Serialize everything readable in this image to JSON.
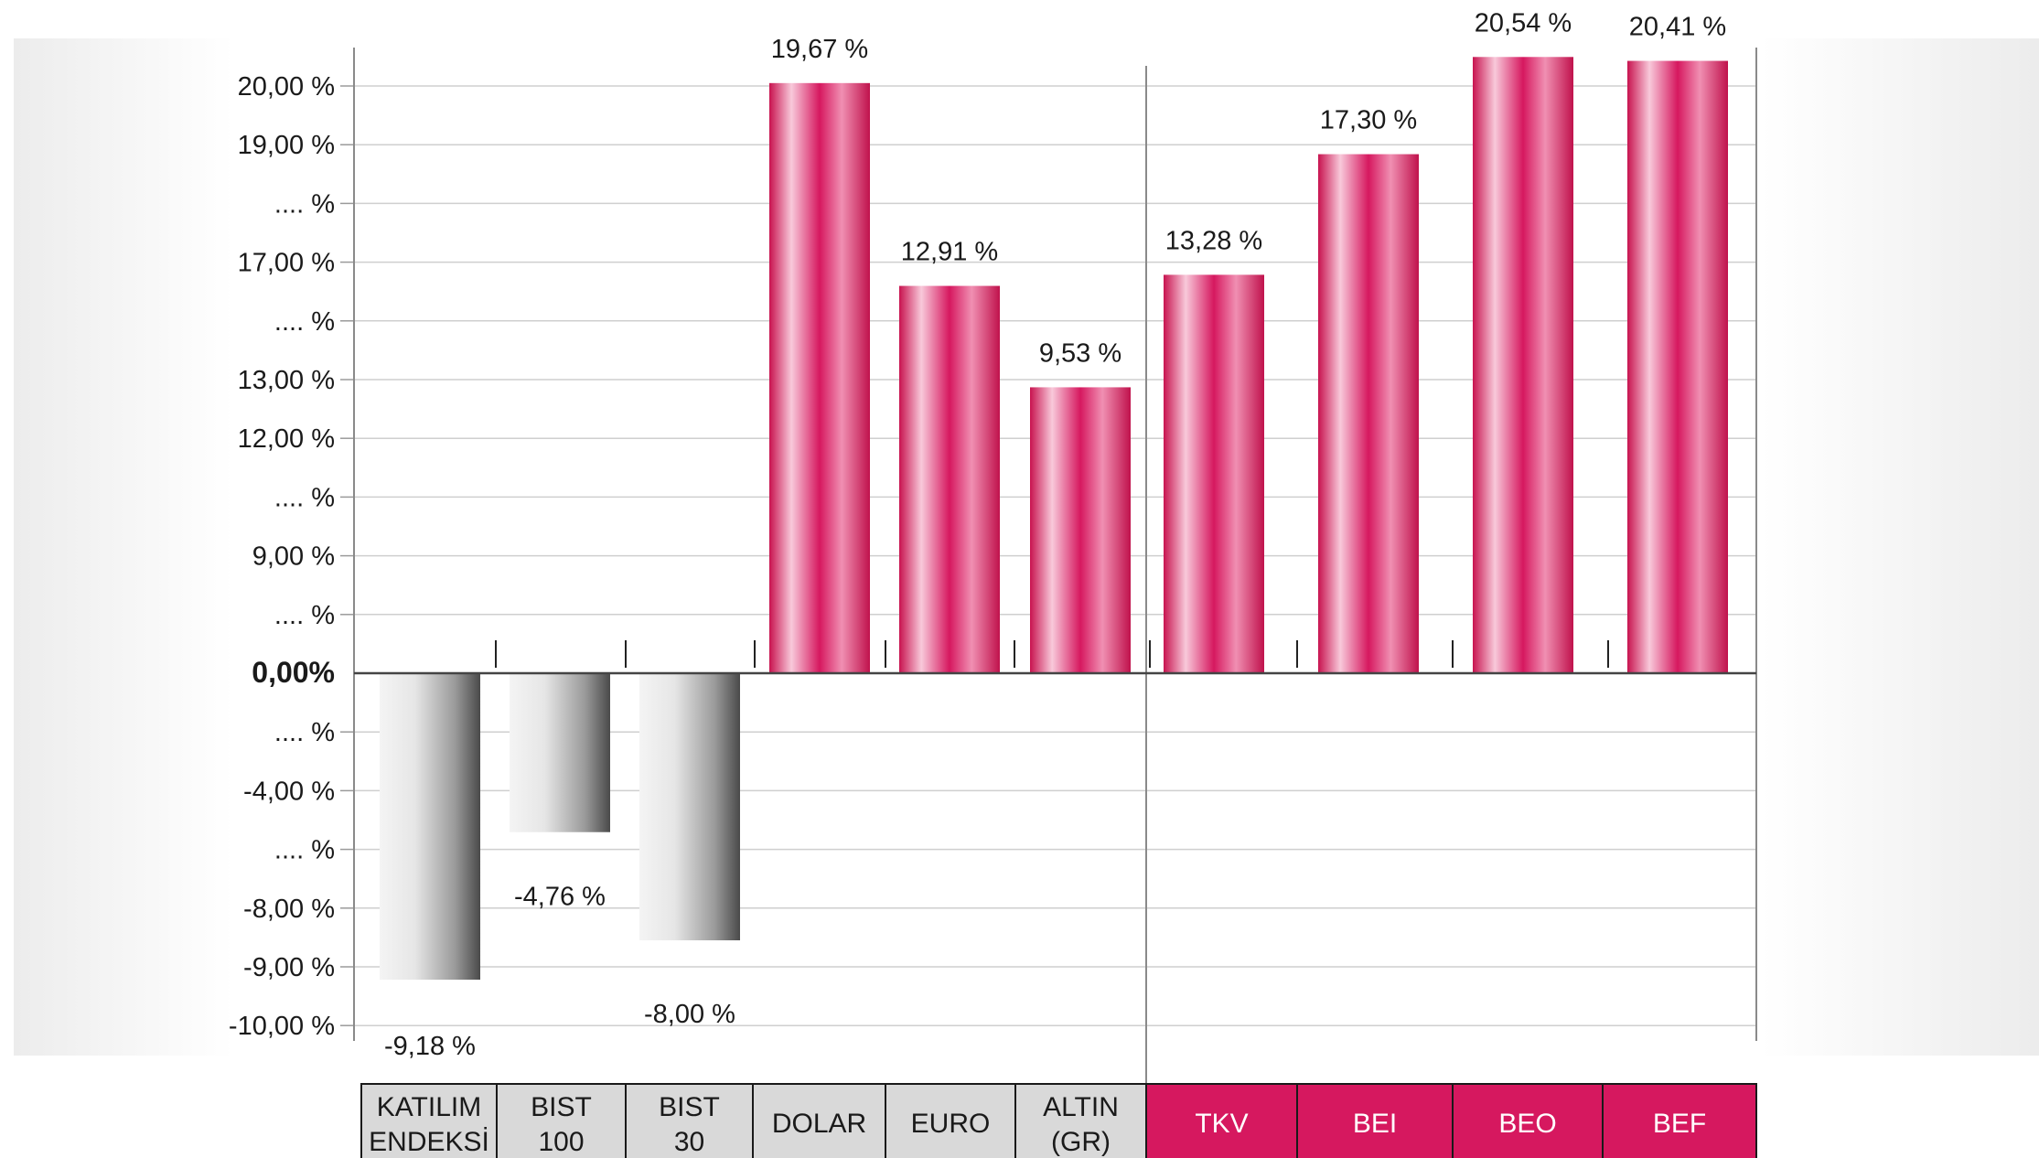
{
  "chart_data": {
    "type": "bar",
    "categories": [
      {
        "lines": [
          "KATILIM",
          "ENDEKSİ"
        ],
        "group": "market"
      },
      {
        "lines": [
          "BIST",
          "100"
        ],
        "group": "market"
      },
      {
        "lines": [
          "BIST",
          "30"
        ],
        "group": "market"
      },
      {
        "lines": [
          "DOLAR"
        ],
        "group": "market"
      },
      {
        "lines": [
          "EURO"
        ],
        "group": "market"
      },
      {
        "lines": [
          "ALTIN",
          "(GR)"
        ],
        "group": "market"
      },
      {
        "lines": [
          "TKV"
        ],
        "group": "fund"
      },
      {
        "lines": [
          "BEI"
        ],
        "group": "fund"
      },
      {
        "lines": [
          "BEO"
        ],
        "group": "fund"
      },
      {
        "lines": [
          "BEF"
        ],
        "group": "fund"
      }
    ],
    "values": [
      -9.18,
      -4.76,
      -8.0,
      19.67,
      12.91,
      9.53,
      13.28,
      17.3,
      20.54,
      20.41
    ],
    "value_labels": [
      "-9,18 %",
      "-4,76 %",
      "-8,00 %",
      "19,67 %",
      "12,91 %",
      "9,53 %",
      "13,28 %",
      "17,30 %",
      "20,54 %",
      "20,41 %"
    ],
    "y_ticks": [
      "20,00 %",
      "19,00 %",
      ".... %",
      "17,00 %",
      ".... %",
      "13,00 %",
      "12,00 %",
      ".... %",
      "9,00 %",
      ".... %",
      "0,00%",
      ".... %",
      "-4,00 %",
      ".... %",
      "-8,00 %",
      "-9,00 %",
      "-10,00 %"
    ],
    "grid": true,
    "colors": {
      "positive": "#d6185f",
      "positive_highlight": "#f6c2d6",
      "negative": "#5a5a5a",
      "negative_highlight": "#f2f2f2",
      "fund_header": "#d6185f",
      "market_header": "#d9d9d9"
    }
  }
}
